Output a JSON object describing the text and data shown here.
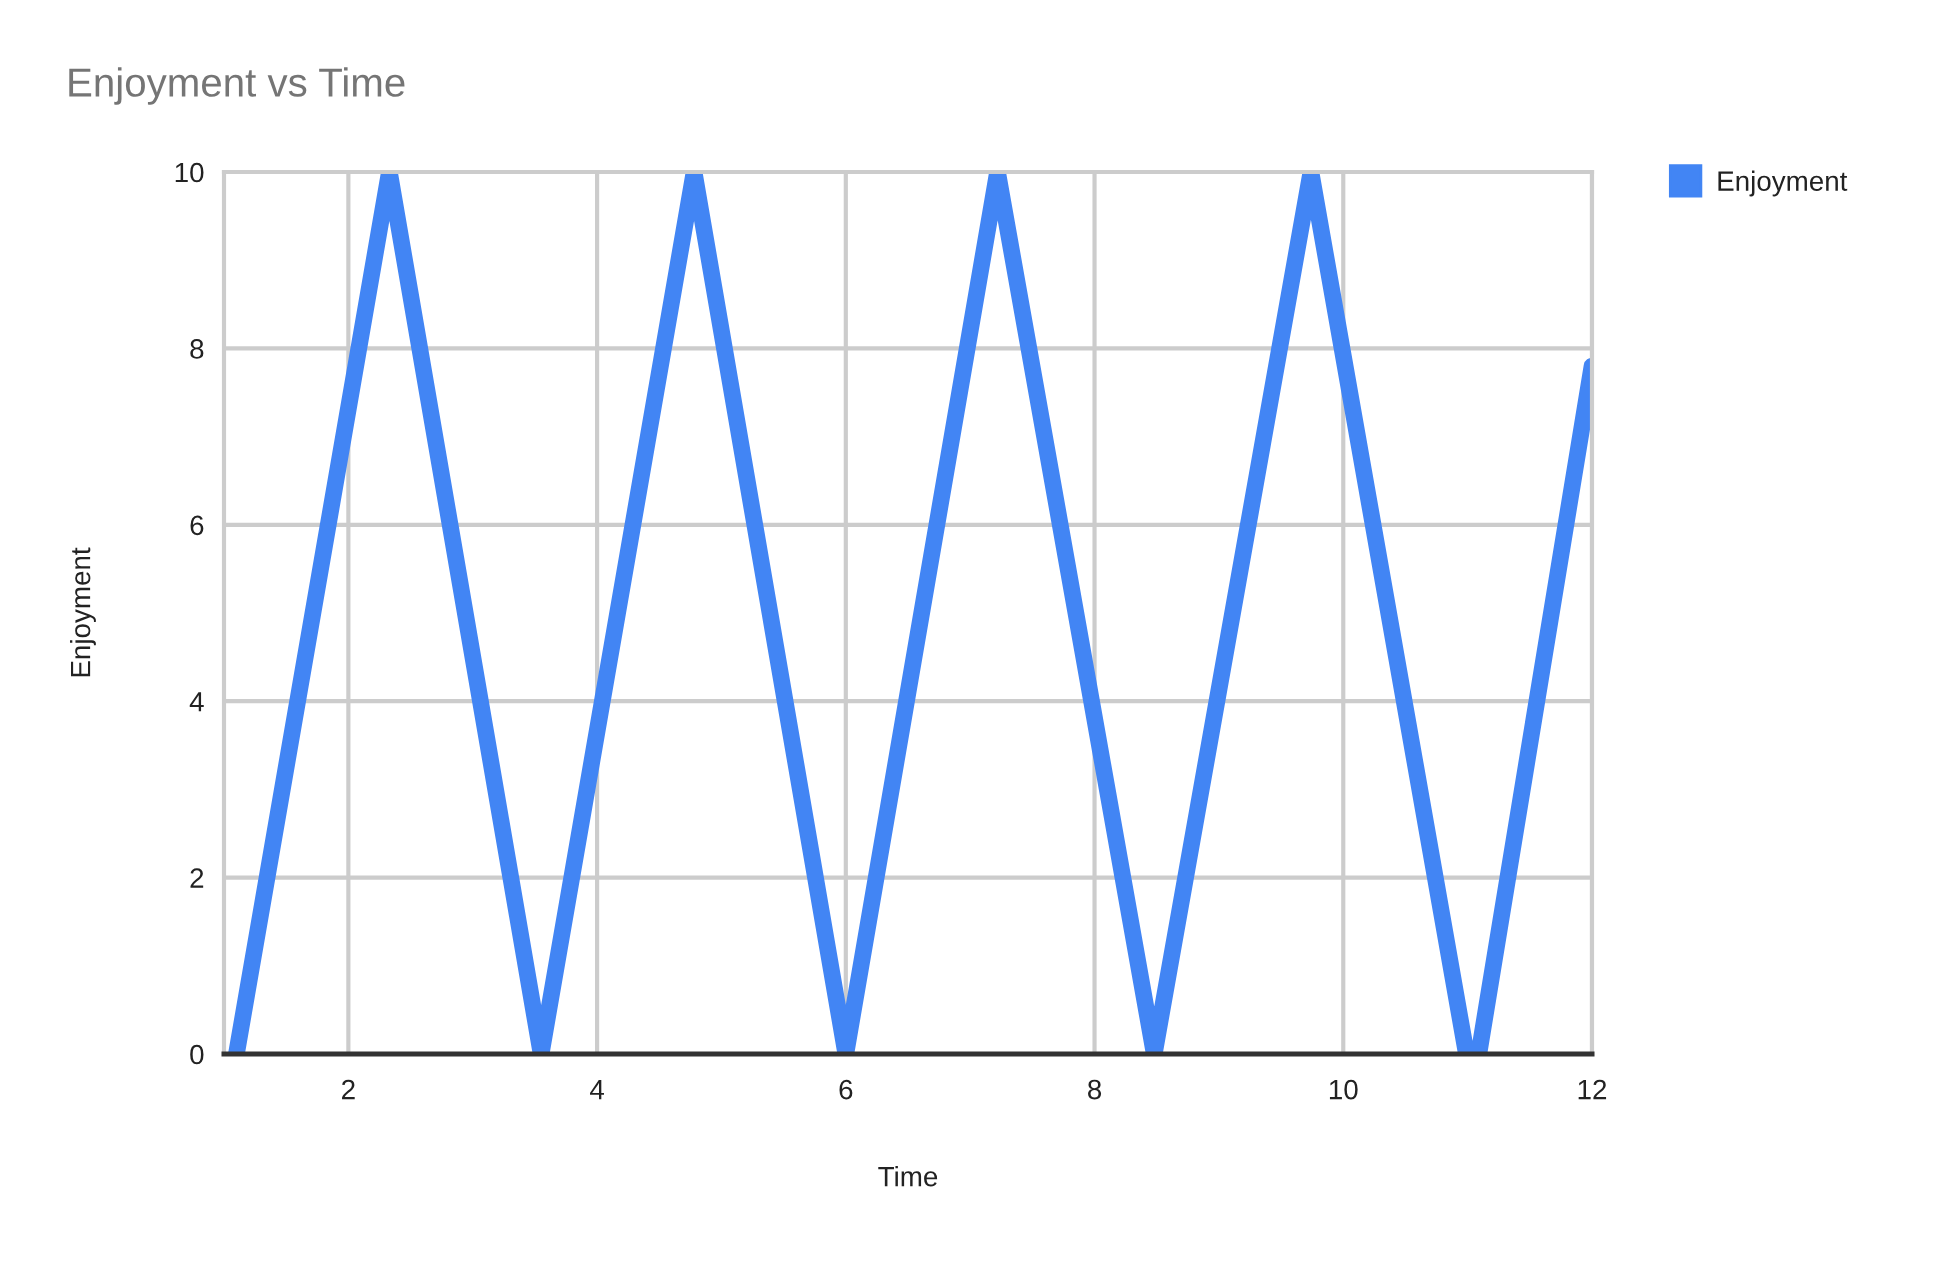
{
  "chart_data": {
    "type": "line",
    "title": "Enjoyment vs Time",
    "xlabel": "Time",
    "ylabel": "Enjoyment",
    "x": [
      1.1,
      2.33,
      3.55,
      4.78,
      6.0,
      7.22,
      8.48,
      9.74,
      10.99,
      11.09,
      12
    ],
    "series": [
      {
        "name": "Enjoyment",
        "color": "#4285f4",
        "values": [
          0,
          10,
          0,
          10,
          0,
          10,
          0,
          10,
          0,
          0,
          7.8
        ]
      }
    ],
    "xlim": [
      1,
      12
    ],
    "ylim": [
      0,
      10
    ],
    "xticks": [
      2,
      4,
      6,
      8,
      10,
      12
    ],
    "yticks": [
      0,
      2,
      4,
      6,
      8,
      10
    ],
    "grid": true,
    "legend": "top right",
    "line_style": "solid"
  }
}
